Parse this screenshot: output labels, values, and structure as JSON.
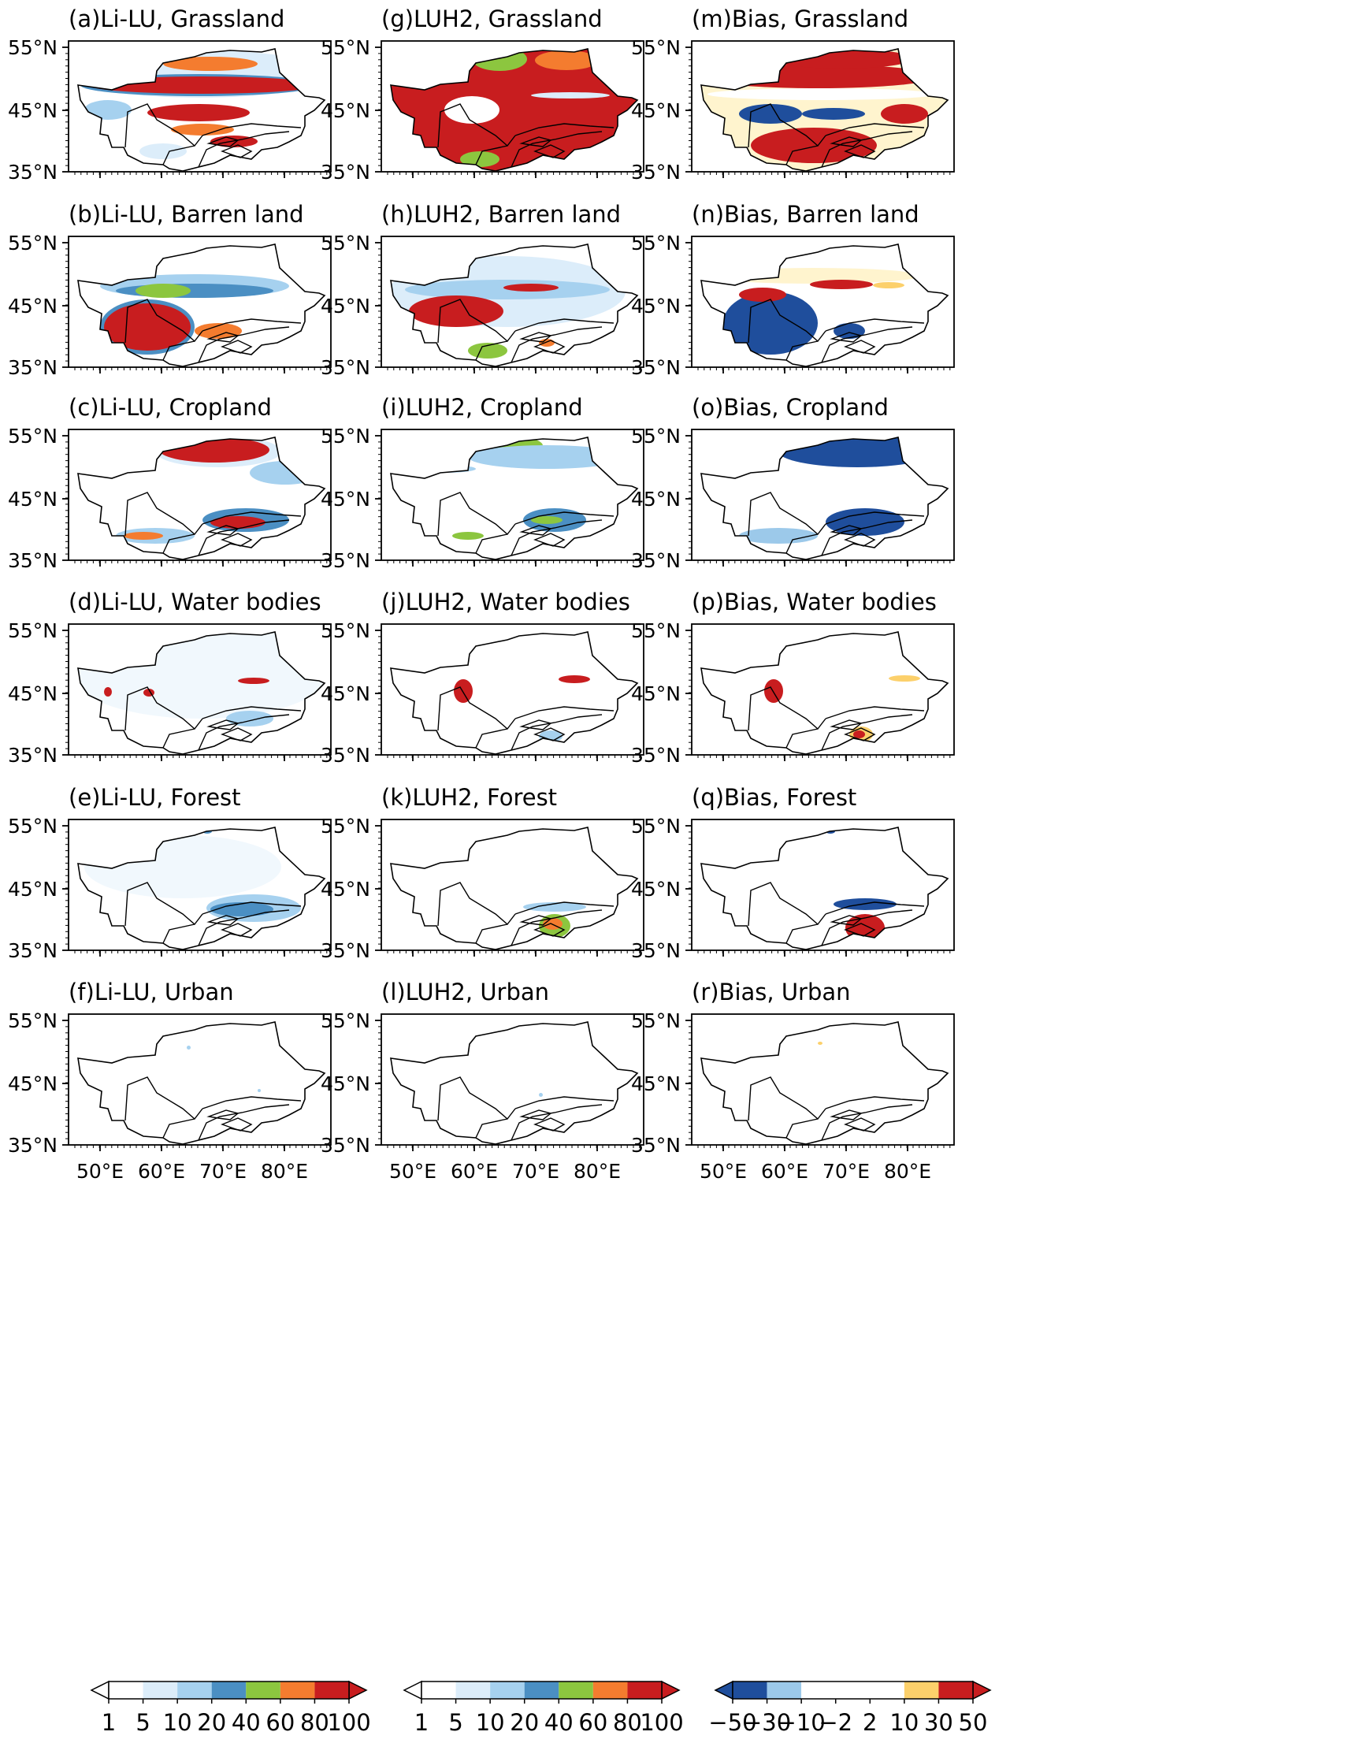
{
  "figure": {
    "lat_ticks": [
      "55°N",
      "45°N",
      "35°N"
    ],
    "lon_ticks": [
      "50°E",
      "60°E",
      "70°E",
      "80°E"
    ],
    "columns": [
      {
        "id": "lilu",
        "scheme": "sequential",
        "panels": [
          {
            "title": "(a)Li-LU, Grassland",
            "layer": "grassland"
          },
          {
            "title": "(b)Li-LU, Barren land",
            "layer": "barren"
          },
          {
            "title": "(c)Li-LU, Cropland",
            "layer": "cropland"
          },
          {
            "title": "(d)Li-LU, Water bodies",
            "layer": "water"
          },
          {
            "title": "(e)Li-LU, Forest",
            "layer": "forest"
          },
          {
            "title": "(f)Li-LU, Urban",
            "layer": "urban"
          }
        ]
      },
      {
        "id": "luh2",
        "scheme": "sequential",
        "panels": [
          {
            "title": "(g)LUH2, Grassland",
            "layer": "grassland"
          },
          {
            "title": "(h)LUH2, Barren land",
            "layer": "barren"
          },
          {
            "title": "(i)LUH2, Cropland",
            "layer": "cropland"
          },
          {
            "title": "(j)LUH2, Water bodies",
            "layer": "water"
          },
          {
            "title": "(k)LUH2, Forest",
            "layer": "forest"
          },
          {
            "title": "(l)LUH2, Urban",
            "layer": "urban"
          }
        ]
      },
      {
        "id": "bias",
        "scheme": "diverging",
        "panels": [
          {
            "title": "(m)Bias, Grassland",
            "layer": "grassland"
          },
          {
            "title": "(n)Bias, Barren land",
            "layer": "barren"
          },
          {
            "title": "(o)Bias, Cropland",
            "layer": "cropland"
          },
          {
            "title": "(p)Bias, Water bodies",
            "layer": "water"
          },
          {
            "title": "(q)Bias, Forest",
            "layer": "forest"
          },
          {
            "title": "(r)Bias, Urban",
            "layer": "urban"
          }
        ]
      }
    ],
    "colorbars": {
      "sequential": {
        "labels": [
          "1",
          "5",
          "10",
          "20",
          "40",
          "60",
          "80",
          "100"
        ],
        "colors": [
          "#ffffff",
          "#dcedfa",
          "#a6d1ef",
          "#4b8fc3",
          "#8cc63f",
          "#f47c2f",
          "#c81d1f"
        ]
      },
      "diverging": {
        "labels": [
          "−50",
          "−30",
          "−10",
          "−2",
          "2",
          "10",
          "30",
          "50"
        ],
        "colors": [
          "#1f4e9c",
          "#9cc9ea",
          "#ffffff",
          "#ffffff",
          "#ffffff",
          "#fcd06b",
          "#c81d1f"
        ],
        "low_color": "#1f4e9c",
        "high_color": "#c81d1f"
      }
    }
  }
}
